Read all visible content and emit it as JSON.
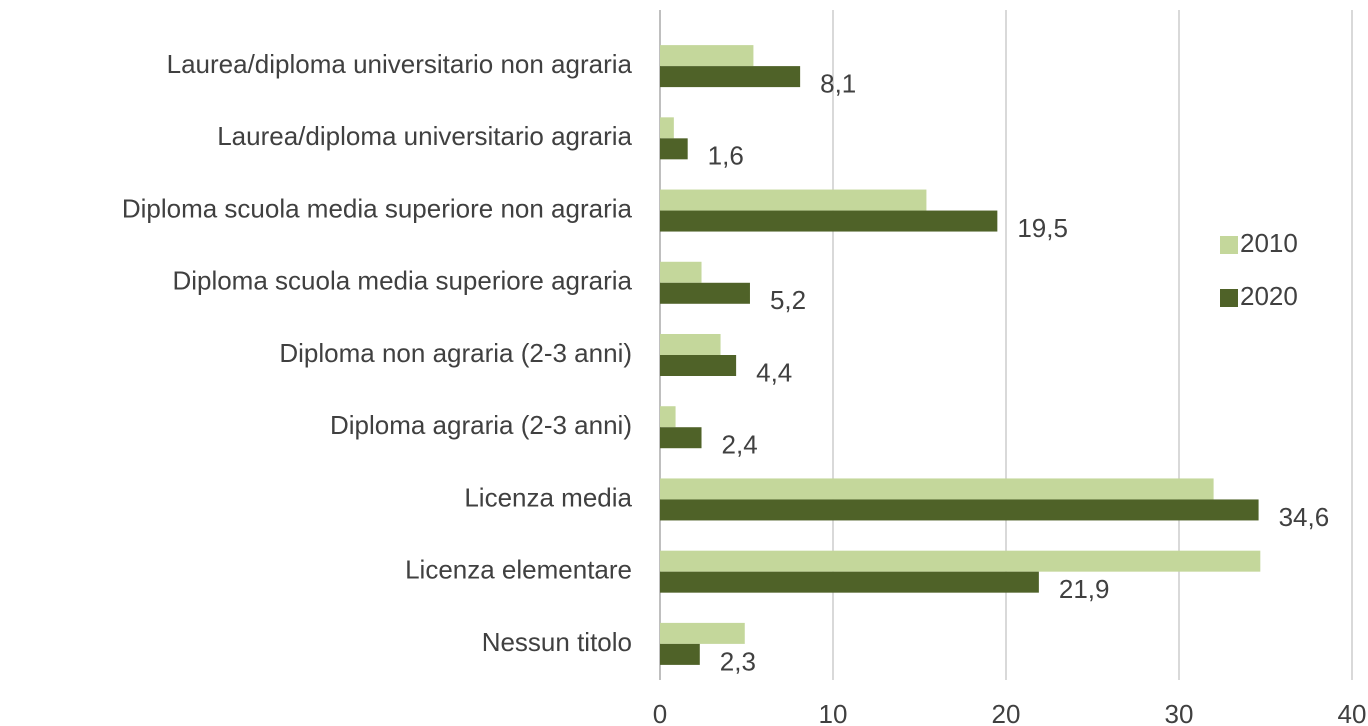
{
  "chart_data": {
    "type": "hbar",
    "categories": [
      "Laurea/diploma universitario non agraria",
      "Laurea/diploma universitario agraria",
      "Diploma scuola media superiore non agraria",
      "Diploma scuola media superiore agraria",
      "Diploma non agraria (2-3 anni)",
      "Diploma agraria (2-3 anni)",
      "Licenza media",
      "Licenza elementare",
      "Nessun titolo"
    ],
    "series": [
      {
        "name": "2010",
        "color": "#c4d79b",
        "values": [
          5.4,
          0.8,
          15.4,
          2.4,
          3.5,
          0.9,
          32.0,
          34.7,
          4.9
        ]
      },
      {
        "name": "2020",
        "color": "#4f6228",
        "values": [
          8.1,
          1.6,
          19.5,
          5.2,
          4.4,
          2.4,
          34.6,
          21.9,
          2.3
        ],
        "value_labels": [
          "8,1",
          "1,6",
          "19,5",
          "5,2",
          "4,4",
          "2,4",
          "34,6",
          "21,9",
          "2,3"
        ]
      }
    ],
    "xlim": [
      0,
      40
    ],
    "xticks": [
      0,
      10,
      20,
      30,
      40
    ],
    "grid": true,
    "legend": "right"
  }
}
